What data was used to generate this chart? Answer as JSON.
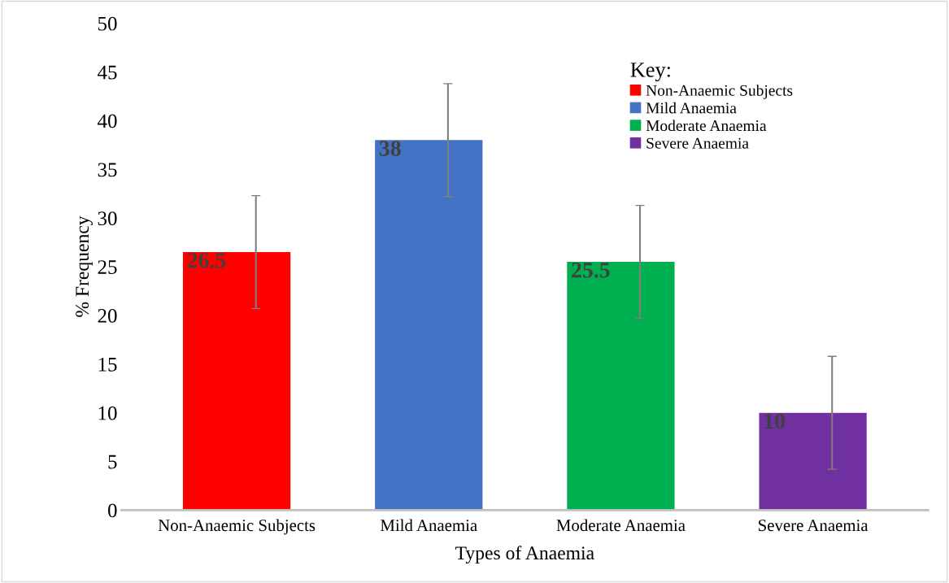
{
  "chart_data": {
    "type": "bar",
    "xlabel": "Types of Anaemia",
    "ylabel": "% Frequency",
    "legend_title": "Key:",
    "categories": [
      "Non-Anaemic Subjects",
      "Mild Anaemia",
      "Moderate Anaemia",
      "Severe Anaemia"
    ],
    "series": [
      {
        "name": "Non-Anaemic Subjects",
        "color": "#ff0000",
        "values": [
          26.5,
          null,
          null,
          null
        ],
        "errors": [
          5.8,
          null,
          null,
          null
        ]
      },
      {
        "name": "Mild Anaemia",
        "color": "#4472c4",
        "values": [
          null,
          38,
          null,
          null
        ],
        "errors": [
          null,
          5.8,
          null,
          null
        ]
      },
      {
        "name": "Moderate Anaemia",
        "color": "#00b050",
        "values": [
          null,
          null,
          25.5,
          null
        ],
        "errors": [
          null,
          null,
          5.8,
          null
        ]
      },
      {
        "name": "Severe Anaemia",
        "color": "#7030a0",
        "values": [
          null,
          null,
          null,
          10
        ],
        "errors": [
          null,
          null,
          null,
          5.8
        ]
      }
    ],
    "ylim": [
      0,
      50
    ],
    "yticks": [
      0,
      5,
      10,
      15,
      20,
      25,
      30,
      35,
      40,
      45,
      50
    ],
    "data_labels": true,
    "legend": "top right"
  }
}
